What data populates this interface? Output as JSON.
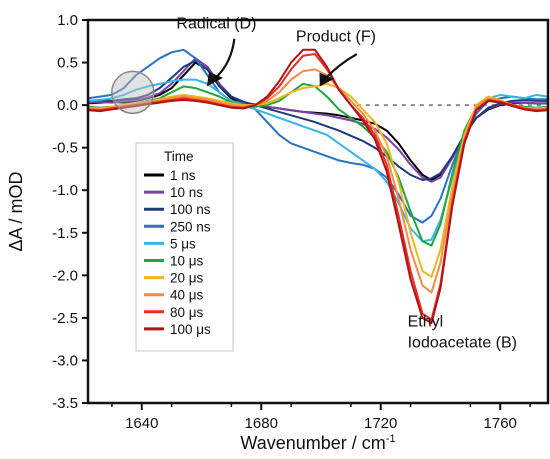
{
  "chart_data": {
    "type": "line",
    "xlabel": "Wavenumber / cm",
    "xlabel_superscript": "-1",
    "ylabel": "ΔA  / mOD",
    "xlim": [
      1622,
      1776
    ],
    "ylim": [
      -3.5,
      1.0
    ],
    "xticks": [
      1640,
      1680,
      1720,
      1760
    ],
    "yticks": [
      1.0,
      0.5,
      0.0,
      -0.5,
      -1.0,
      -1.5,
      -2.0,
      -2.5,
      -3.0,
      -3.5
    ],
    "ytick_labels": [
      "1.0",
      "0.5",
      "0.0",
      "-0.5",
      "-1.0",
      "-1.5",
      "-2.0",
      "-2.5",
      "-3.0",
      "-3.5"
    ],
    "zero_line": "dotted gray",
    "legend_title": "Time",
    "legend_position": "left",
    "annotations": [
      {
        "text": "Radical (D)",
        "x": 1665,
        "y": 0.9
      },
      {
        "text": "Product (F)",
        "x": 1705,
        "y": 0.75
      },
      {
        "text": "Ethyl",
        "x": 1729,
        "y": -2.6
      },
      {
        "text": "Iodoacetate (B)",
        "x": 1729,
        "y": -2.85
      }
    ],
    "circle_marker": {
      "x": 1637,
      "y": 0.15
    },
    "x": [
      1622,
      1626,
      1630,
      1634,
      1638,
      1642,
      1646,
      1650,
      1654,
      1658,
      1662,
      1666,
      1670,
      1674,
      1678,
      1682,
      1686,
      1690,
      1694,
      1698,
      1702,
      1706,
      1710,
      1714,
      1718,
      1722,
      1726,
      1730,
      1734,
      1737,
      1740,
      1744,
      1748,
      1752,
      1756,
      1760,
      1764,
      1768,
      1772,
      1776
    ],
    "series": [
      {
        "name": "1 ns",
        "color": "#000000",
        "values": [
          0.02,
          0.03,
          0.04,
          0.03,
          0.05,
          0.08,
          0.12,
          0.2,
          0.35,
          0.5,
          0.42,
          0.22,
          0.08,
          0.02,
          0.0,
          -0.02,
          -0.04,
          -0.06,
          -0.08,
          -0.09,
          -0.1,
          -0.12,
          -0.15,
          -0.18,
          -0.22,
          -0.3,
          -0.45,
          -0.65,
          -0.82,
          -0.88,
          -0.82,
          -0.6,
          -0.35,
          -0.15,
          -0.05,
          0.0,
          0.02,
          0.03,
          0.02,
          0.02
        ]
      },
      {
        "name": "10 ns",
        "color": "#7b3fa8",
        "values": [
          0.03,
          0.04,
          0.03,
          0.05,
          0.06,
          0.09,
          0.14,
          0.25,
          0.4,
          0.55,
          0.45,
          0.25,
          0.1,
          0.03,
          0.01,
          -0.02,
          -0.04,
          -0.06,
          -0.08,
          -0.1,
          -0.12,
          -0.15,
          -0.18,
          -0.22,
          -0.28,
          -0.38,
          -0.52,
          -0.7,
          -0.85,
          -0.9,
          -0.85,
          -0.62,
          -0.35,
          -0.15,
          -0.04,
          0.01,
          0.03,
          0.03,
          0.02,
          0.02
        ]
      },
      {
        "name": "100 ns",
        "color": "#1f3a7a",
        "values": [
          0.05,
          0.06,
          0.05,
          0.07,
          0.08,
          0.12,
          0.2,
          0.32,
          0.45,
          0.52,
          0.42,
          0.22,
          0.1,
          0.04,
          0.0,
          -0.04,
          -0.08,
          -0.12,
          -0.16,
          -0.2,
          -0.25,
          -0.3,
          -0.36,
          -0.42,
          -0.5,
          -0.6,
          -0.72,
          -0.82,
          -0.88,
          -0.86,
          -0.8,
          -0.6,
          -0.35,
          -0.15,
          -0.03,
          0.02,
          0.05,
          0.06,
          0.05,
          0.05
        ]
      },
      {
        "name": "250 ns",
        "color": "#2a72c4",
        "values": [
          0.08,
          0.1,
          0.12,
          0.2,
          0.35,
          0.45,
          0.55,
          0.62,
          0.65,
          0.55,
          0.35,
          0.15,
          0.05,
          0.02,
          -0.05,
          -0.2,
          -0.35,
          -0.45,
          -0.5,
          -0.55,
          -0.6,
          -0.65,
          -0.68,
          -0.7,
          -0.75,
          -0.85,
          -1.05,
          -1.3,
          -1.38,
          -1.3,
          -1.1,
          -0.7,
          -0.35,
          -0.1,
          0.05,
          0.08,
          0.1,
          0.08,
          0.07,
          0.07
        ]
      },
      {
        "name": "5 μs",
        "color": "#35b6e6",
        "values": [
          0.05,
          0.06,
          0.08,
          0.12,
          0.18,
          0.22,
          0.25,
          0.28,
          0.3,
          0.3,
          0.25,
          0.15,
          0.05,
          0.0,
          -0.05,
          -0.1,
          -0.15,
          -0.2,
          -0.25,
          -0.3,
          -0.35,
          -0.45,
          -0.55,
          -0.65,
          -0.75,
          -0.9,
          -1.15,
          -1.45,
          -1.6,
          -1.58,
          -1.35,
          -0.85,
          -0.35,
          -0.05,
          0.08,
          0.12,
          0.1,
          0.08,
          0.12,
          0.1
        ]
      },
      {
        "name": "10 μs",
        "color": "#22a63c",
        "values": [
          -0.02,
          -0.03,
          -0.02,
          0.0,
          0.02,
          0.05,
          0.08,
          0.15,
          0.22,
          0.2,
          0.15,
          0.1,
          0.03,
          0.0,
          -0.02,
          0.0,
          0.05,
          0.15,
          0.25,
          0.22,
          0.1,
          -0.05,
          -0.15,
          -0.25,
          -0.38,
          -0.55,
          -0.85,
          -1.25,
          -1.6,
          -1.65,
          -1.4,
          -0.8,
          -0.3,
          -0.02,
          0.08,
          0.05,
          0.0,
          -0.02,
          -0.03,
          -0.02
        ]
      },
      {
        "name": "20 μs",
        "color": "#f2b51d",
        "values": [
          -0.03,
          -0.04,
          -0.02,
          0.0,
          0.02,
          0.04,
          0.07,
          0.1,
          0.12,
          0.1,
          0.08,
          0.05,
          0.02,
          0.0,
          0.0,
          0.02,
          0.08,
          0.15,
          0.2,
          0.22,
          0.25,
          0.2,
          0.1,
          -0.05,
          -0.2,
          -0.45,
          -0.9,
          -1.5,
          -1.95,
          -2.02,
          -1.7,
          -0.95,
          -0.35,
          0.0,
          0.1,
          0.06,
          0.0,
          -0.03,
          -0.04,
          -0.03
        ]
      },
      {
        "name": "40 μs",
        "color": "#f08c4a",
        "values": [
          -0.04,
          -0.05,
          -0.03,
          -0.01,
          0.01,
          0.03,
          0.05,
          0.08,
          0.1,
          0.08,
          0.06,
          0.03,
          0.0,
          -0.02,
          0.0,
          0.05,
          0.15,
          0.3,
          0.4,
          0.42,
          0.35,
          0.2,
          0.05,
          -0.1,
          -0.3,
          -0.6,
          -1.1,
          -1.7,
          -2.12,
          -2.2,
          -1.85,
          -1.05,
          -0.4,
          -0.02,
          0.08,
          0.05,
          0.0,
          -0.03,
          -0.05,
          -0.04
        ]
      },
      {
        "name": "80 μs",
        "color": "#ee2b22",
        "values": [
          -0.05,
          -0.06,
          -0.04,
          -0.02,
          0.0,
          0.02,
          0.04,
          0.06,
          0.08,
          0.06,
          0.04,
          0.01,
          -0.02,
          -0.03,
          0.0,
          0.08,
          0.22,
          0.42,
          0.58,
          0.6,
          0.42,
          0.18,
          0.0,
          -0.15,
          -0.35,
          -0.7,
          -1.3,
          -1.95,
          -2.45,
          -2.52,
          -2.1,
          -1.15,
          -0.42,
          -0.05,
          0.06,
          0.04,
          0.0,
          -0.04,
          -0.06,
          -0.05
        ]
      },
      {
        "name": "100 μs",
        "color": "#b01414",
        "values": [
          -0.06,
          -0.07,
          -0.05,
          -0.03,
          -0.01,
          0.01,
          0.03,
          0.05,
          0.06,
          0.05,
          0.03,
          0.0,
          -0.03,
          -0.04,
          0.0,
          0.1,
          0.28,
          0.5,
          0.65,
          0.65,
          0.45,
          0.18,
          0.0,
          -0.18,
          -0.4,
          -0.78,
          -1.4,
          -2.05,
          -2.5,
          -2.56,
          -2.15,
          -1.18,
          -0.45,
          -0.06,
          0.05,
          0.03,
          -0.01,
          -0.05,
          -0.07,
          -0.06
        ]
      }
    ]
  }
}
